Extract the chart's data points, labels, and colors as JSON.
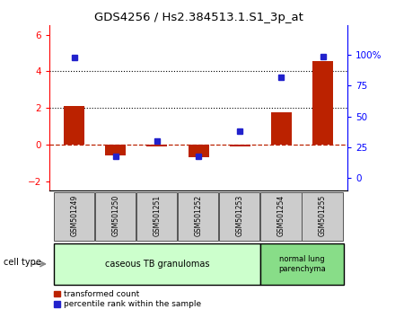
{
  "title": "GDS4256 / Hs2.384513.1.S1_3p_at",
  "samples": [
    "GSM501249",
    "GSM501250",
    "GSM501251",
    "GSM501252",
    "GSM501253",
    "GSM501254",
    "GSM501255"
  ],
  "transformed_counts": [
    2.1,
    -0.55,
    -0.07,
    -0.65,
    -0.07,
    1.75,
    4.55
  ],
  "percentile_ranks": [
    98,
    18,
    30,
    18,
    38,
    82,
    99
  ],
  "ylim_left": [
    -2.5,
    6.5
  ],
  "ylim_right": [
    -10.4,
    124
  ],
  "yticks_left": [
    -2,
    0,
    2,
    4,
    6
  ],
  "yticks_right": [
    0,
    25,
    50,
    75,
    100
  ],
  "ytick_labels_right": [
    "0",
    "25",
    "50",
    "75",
    "100%"
  ],
  "red_bar_color": "#bb2200",
  "blue_marker_color": "#2222cc",
  "dotted_line_y": [
    2.0,
    4.0
  ],
  "dashed_line_y": 0.0,
  "group1_label": "caseous TB granulomas",
  "group2_label": "normal lung\nparenchyma",
  "group1_color": "#ccffcc",
  "group2_color": "#88dd88",
  "tick_box_color": "#cccccc",
  "cell_type_label": "cell type",
  "legend_red_label": "transformed count",
  "legend_blue_label": "percentile rank within the sample",
  "bar_width": 0.5,
  "marker_size": 5
}
